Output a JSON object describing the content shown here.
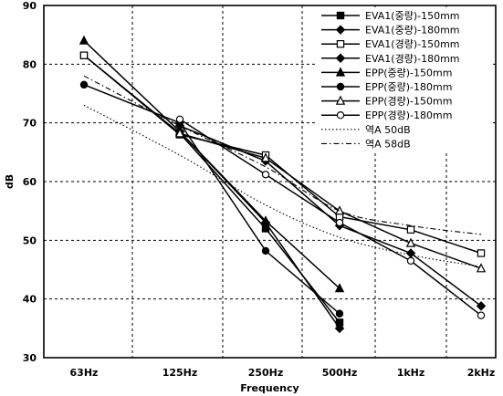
{
  "chart_data": {
    "type": "line",
    "title": "",
    "xlabel": "Frequency",
    "ylabel": "dB",
    "categories": [
      "63Hz",
      "125Hz",
      "250Hz",
      "500Hz",
      "1kHz",
      "2kHz"
    ],
    "ylim": [
      30,
      90
    ],
    "yticks": [
      30,
      40,
      50,
      60,
      70,
      80,
      90
    ],
    "grid": true,
    "legend_position": "top-right",
    "series": [
      {
        "name": "EVA1(중량)-150mm",
        "marker": "square-filled",
        "style": "solid",
        "values": [
          81.5,
          68.2,
          52.0,
          36.0,
          null,
          null
        ]
      },
      {
        "name": "EVA1(중량)-180mm",
        "marker": "diamond-filled",
        "style": "solid",
        "values": [
          null,
          68.5,
          53.0,
          35.0,
          null,
          null
        ]
      },
      {
        "name": "EVA1(경량)-150mm",
        "marker": "square-open",
        "style": "solid",
        "values": [
          81.5,
          68.0,
          64.5,
          54.0,
          51.8,
          47.8
        ]
      },
      {
        "name": "EVA1(경량)-180mm",
        "marker": "diamond-filled",
        "style": "solid",
        "values": [
          null,
          69.5,
          63.5,
          52.5,
          47.8,
          38.8
        ]
      },
      {
        "name": "EPP(중량)-150mm",
        "marker": "triangle-filled",
        "style": "solid",
        "values": [
          84.0,
          68.5,
          53.3,
          41.8,
          null,
          null
        ]
      },
      {
        "name": "EPP(중량)-180mm",
        "marker": "circle-filled",
        "style": "solid",
        "values": [
          76.5,
          70.0,
          48.2,
          37.5,
          null,
          null
        ]
      },
      {
        "name": "EPP(경량)-150mm",
        "marker": "triangle-open",
        "style": "solid",
        "values": [
          null,
          68.2,
          64.0,
          55.0,
          49.5,
          45.2
        ]
      },
      {
        "name": "EPP(경량)-180mm",
        "marker": "circle-open",
        "style": "solid",
        "values": [
          null,
          70.6,
          61.2,
          53.0,
          46.5,
          37.2
        ]
      },
      {
        "name": "역A 50dB",
        "marker": "none",
        "style": "dotted",
        "values": [
          73.0,
          64.5,
          56.0,
          50.5,
          47.5,
          45.5
        ]
      },
      {
        "name": "역A 58dB",
        "marker": "none",
        "style": "dashdot",
        "values": [
          78.0,
          69.5,
          62.5,
          55.0,
          52.5,
          51.0
        ]
      }
    ]
  }
}
